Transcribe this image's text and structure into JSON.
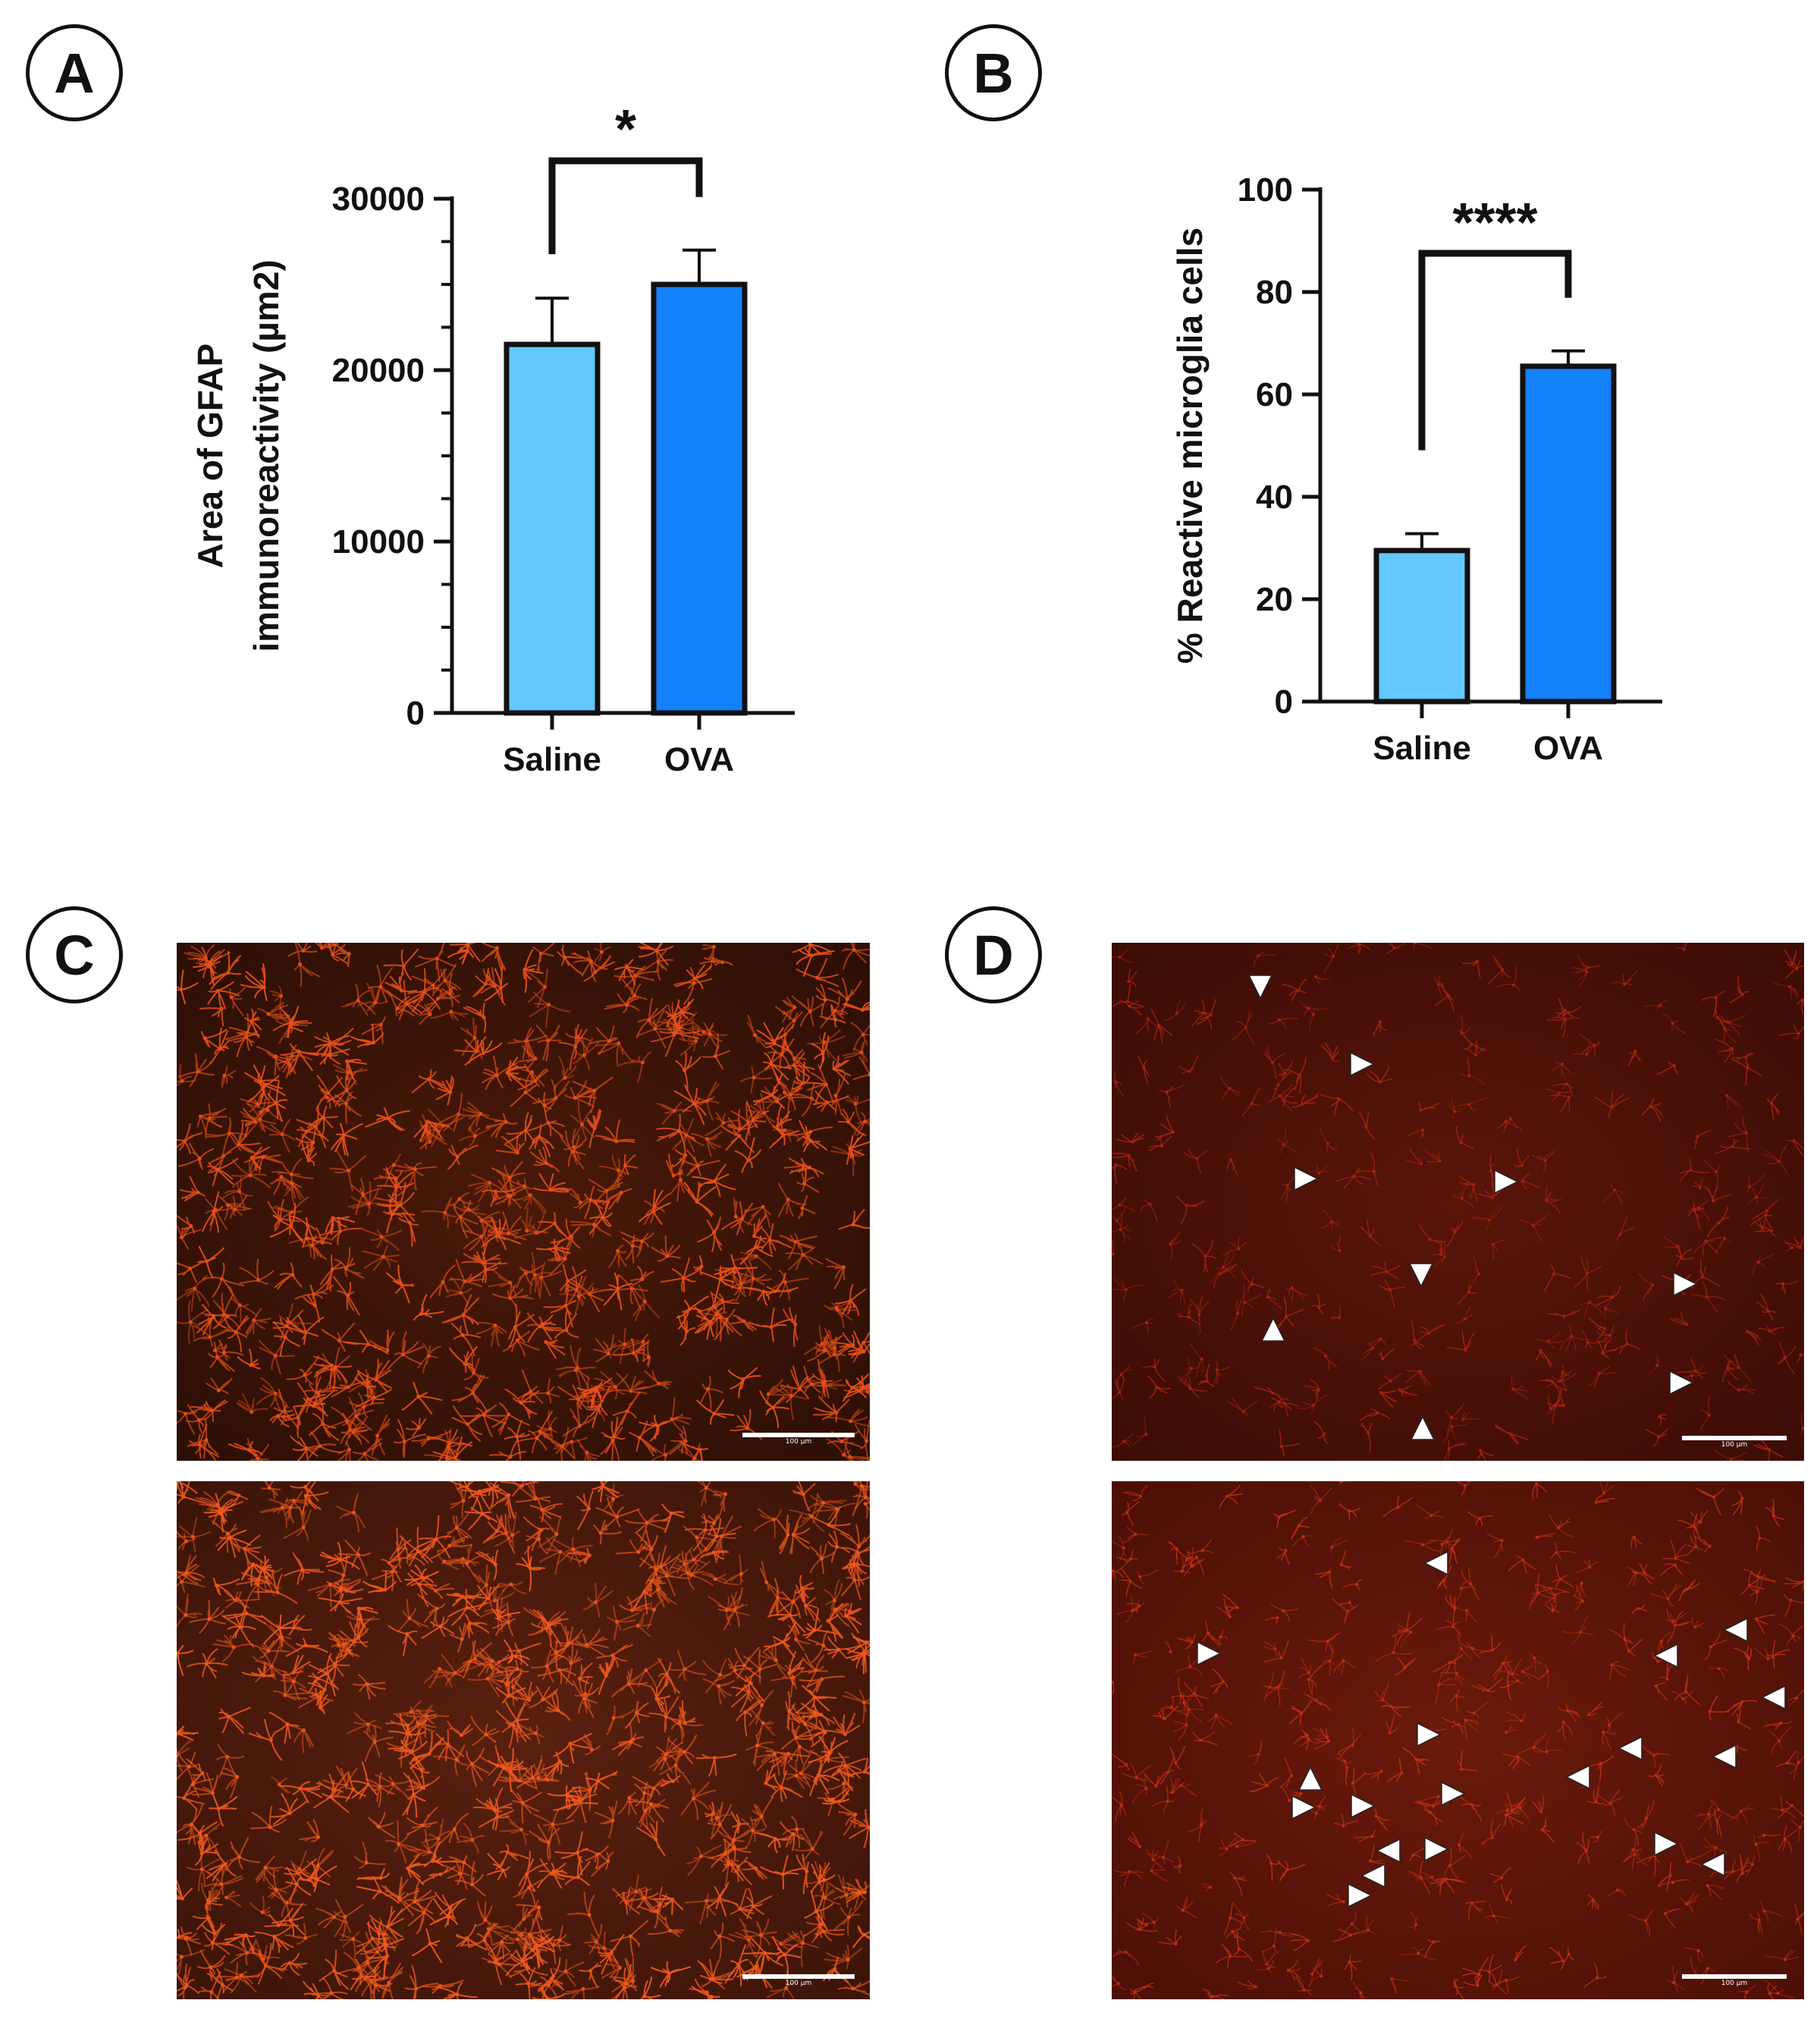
{
  "panels": {
    "A": "A",
    "B": "B",
    "C": "C",
    "D": "D"
  },
  "chart_data": [
    {
      "type": "bar",
      "panel": "A",
      "categories": [
        "Saline",
        "OVA"
      ],
      "values": [
        21500,
        25000
      ],
      "errors": [
        2700,
        2000
      ],
      "colors": [
        "#62c8ff",
        "#1480fa"
      ],
      "ylabel_lines": [
        "Area of GFAP",
        "immunoreactivity (µm2)"
      ],
      "ylim": [
        0,
        30000
      ],
      "yticks": [
        0,
        10000,
        20000,
        30000
      ],
      "ytick_labels": [
        "0",
        "10000",
        "20000",
        "30000"
      ],
      "minor_ticks": true,
      "significance": "*"
    },
    {
      "type": "bar",
      "panel": "B",
      "categories": [
        "Saline",
        "OVA"
      ],
      "values": [
        29.5,
        65.5
      ],
      "errors": [
        3.3,
        3.0
      ],
      "colors": [
        "#62c8ff",
        "#1480fa"
      ],
      "ylabel_lines": [
        "% Reactive microglia cells"
      ],
      "ylim": [
        0,
        100
      ],
      "yticks": [
        0,
        20,
        40,
        60,
        80,
        100
      ],
      "ytick_labels": [
        "0",
        "20",
        "40",
        "60",
        "80",
        "100"
      ],
      "minor_ticks": false,
      "significance": "****"
    }
  ],
  "micrographs": {
    "C_top": {
      "scale_label": "100 µm",
      "stain_color": "#e8501a"
    },
    "C_bottom": {
      "scale_label": "100 µm",
      "stain_color": "#f0581e"
    },
    "D_top": {
      "scale_label": "100 µm",
      "stain_color": "#a82410"
    },
    "D_bottom": {
      "scale_label": "100 µm",
      "stain_color": "#c03015"
    }
  }
}
